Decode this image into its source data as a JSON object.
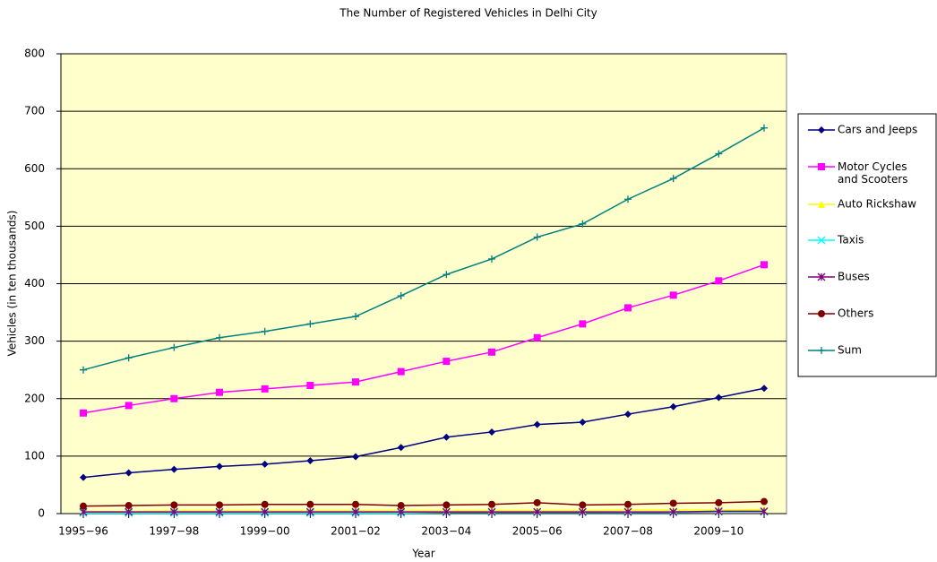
{
  "chart_data": {
    "type": "line",
    "title": "The Number of Registered Vehicles in Delhi City",
    "x_label": "Year",
    "y_label": "Vehicles (in ten thousands)",
    "categories": [
      "1995−96",
      null,
      "1997−98",
      null,
      "1999−00",
      null,
      "2001−02",
      null,
      "2003−04",
      null,
      "2005−06",
      null,
      "2007−08",
      null,
      "2009−10",
      null
    ],
    "ylim": [
      0,
      800
    ],
    "yticks": [
      0,
      100,
      200,
      300,
      400,
      500,
      600,
      700,
      800
    ],
    "grid": true,
    "legend": "right",
    "series": [
      {
        "name": "Cars and Jeeps",
        "color": "#000080",
        "marker": "diamond",
        "values": [
          63,
          71,
          77,
          82,
          86,
          92,
          99,
          115,
          133,
          142,
          155,
          159,
          173,
          186,
          202,
          218
        ]
      },
      {
        "name": "Motor Cycles and Scooters",
        "color": "#ff00ff",
        "marker": "square",
        "values": [
          175,
          188,
          200,
          211,
          217,
          223,
          229,
          247,
          265,
          281,
          306,
          330,
          358,
          380,
          405,
          433
        ]
      },
      {
        "name": "Auto Rickshaw",
        "color": "#ffff00",
        "marker": "triangle",
        "values": [
          4,
          4,
          5,
          5,
          5,
          5,
          5,
          5,
          5,
          5,
          5,
          5,
          6,
          6,
          6,
          7
        ]
      },
      {
        "name": "Taxis",
        "color": "#00ffff",
        "marker": "x",
        "values": [
          1,
          1,
          1,
          1,
          1,
          1,
          1,
          1,
          2,
          2,
          2,
          2,
          2,
          2,
          3,
          3
        ]
      },
      {
        "name": "Buses",
        "color": "#800080",
        "marker": "star",
        "values": [
          3,
          3,
          3,
          3,
          3,
          3,
          3,
          3,
          3,
          3,
          3,
          3,
          3,
          3,
          4,
          4
        ]
      },
      {
        "name": "Others",
        "color": "#800000",
        "marker": "circle",
        "values": [
          13,
          14,
          15,
          15,
          16,
          16,
          16,
          14,
          15,
          16,
          19,
          15,
          16,
          18,
          19,
          21
        ]
      },
      {
        "name": "Sum",
        "color": "#008080",
        "marker": "plus",
        "values": [
          250,
          271,
          289,
          306,
          317,
          330,
          343,
          379,
          416,
          443,
          481,
          504,
          547,
          583,
          626,
          671
        ]
      }
    ]
  }
}
